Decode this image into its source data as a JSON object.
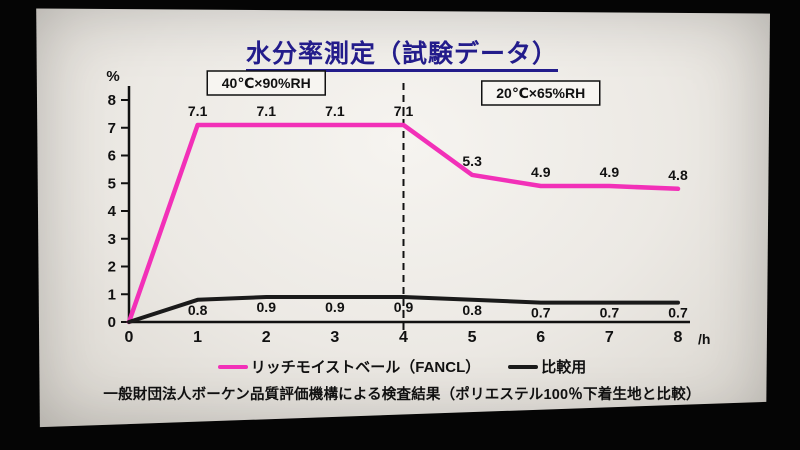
{
  "slide": {
    "title": "水分率測定（試験データ）",
    "footer": "一般財団法人ボーケン品質評価機構による検査結果（ポリエステル100％下着生地と比較）"
  },
  "chart_data": {
    "type": "line",
    "x": [
      0,
      1,
      2,
      3,
      4,
      5,
      6,
      7,
      8
    ],
    "series": [
      {
        "name": "リッチモイストベール（FANCL）",
        "color": "#f230b8",
        "values": [
          0,
          7.1,
          7.1,
          7.1,
          7.1,
          5.3,
          4.9,
          4.9,
          4.8
        ],
        "label_position": "above"
      },
      {
        "name": "比較用",
        "color": "#1a1a1a",
        "values": [
          0,
          0.8,
          0.9,
          0.9,
          0.9,
          0.8,
          0.7,
          0.7,
          0.7
        ],
        "label_position": "below"
      }
    ],
    "ylabel": "%",
    "xlabel": "/h",
    "xlim": [
      0,
      8
    ],
    "ylim": [
      0,
      8
    ],
    "yticks": [
      0,
      1,
      2,
      3,
      4,
      5,
      6,
      7,
      8
    ],
    "xticks": [
      0,
      1,
      2,
      3,
      4,
      5,
      6,
      7,
      8
    ],
    "grid": false,
    "legend_position": "bottom",
    "point_labels": true,
    "divider_x": 4,
    "annotations": [
      {
        "text": "40℃×90%RH",
        "x": 2,
        "boxed": true
      },
      {
        "text": "20℃×65%RH",
        "x": 6,
        "boxed": true
      }
    ]
  }
}
